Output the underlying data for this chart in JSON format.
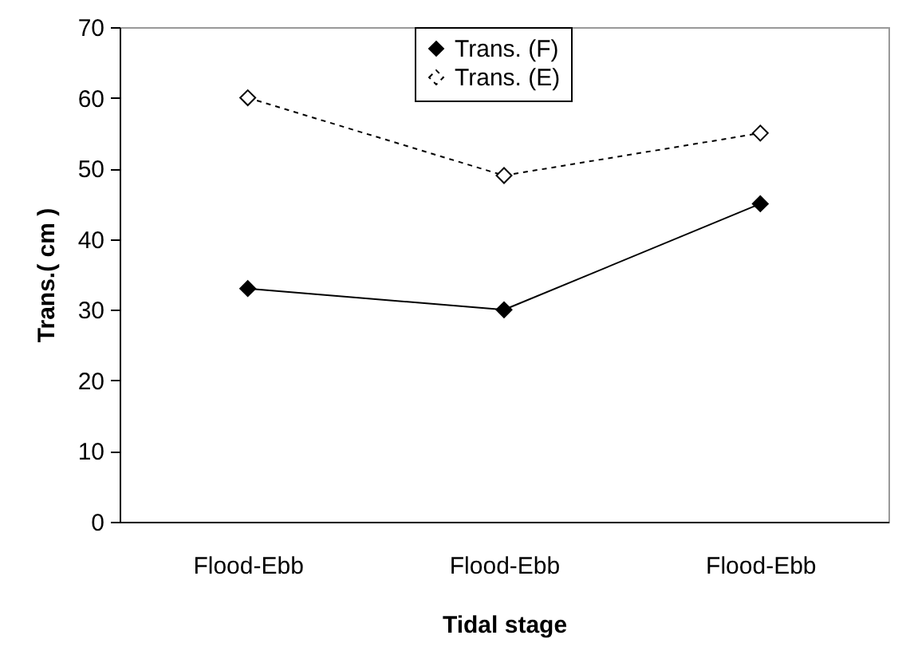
{
  "chart_data": {
    "type": "line",
    "xlabel": "Tidal stage",
    "ylabel": "Trans.( cm )",
    "categories": [
      "Flood-Ebb",
      "Flood-Ebb",
      "Flood-Ebb"
    ],
    "series": [
      {
        "name": "Trans. (F)",
        "color": "#000000",
        "line_style": "solid",
        "values": [
          33,
          30,
          45
        ]
      },
      {
        "name": "Trans. (E)",
        "color": "#000000",
        "line_style": "dotted",
        "values": [
          60,
          49,
          55
        ]
      }
    ],
    "ylim": [
      0,
      70
    ],
    "yticks": [
      0,
      10,
      20,
      30,
      40,
      50,
      60,
      70
    ],
    "grid": false,
    "legend": "top",
    "marker": "diamond"
  }
}
